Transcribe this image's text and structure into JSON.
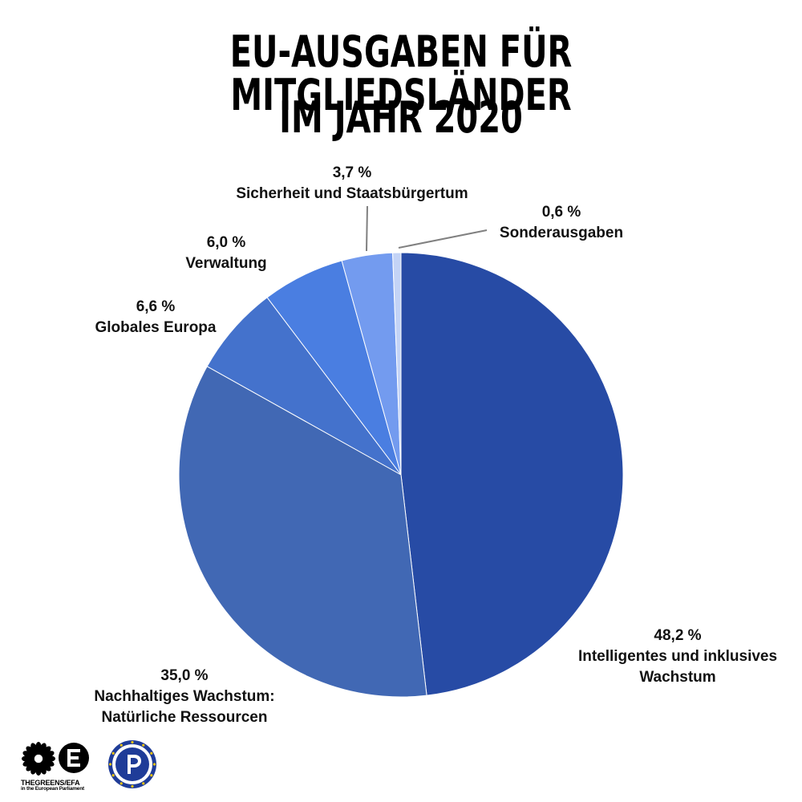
{
  "title_line1": "EU-AUSGABEN FÜR MITGLIEDSLÄNDER",
  "title_line2": "IM JAHR 2020",
  "chart_data": {
    "type": "pie",
    "title": "EU-AUSGABEN FÜR MITGLIEDSLÄNDER IM JAHR 2020",
    "start": "top",
    "direction": "clockwise",
    "slices": [
      {
        "value": 48.2,
        "pct_label": "48,2 %",
        "name_lines": [
          "Intelligentes und inklusives",
          "Wachstum"
        ],
        "color": "#274ba5"
      },
      {
        "value": 35.0,
        "pct_label": "35,0 %",
        "name_lines": [
          "Nachhaltiges Wachstum:",
          "Natürliche Ressourcen"
        ],
        "color": "#4168b4"
      },
      {
        "value": 6.6,
        "pct_label": "6,6 %",
        "name_lines": [
          "Globales Europa"
        ],
        "color": "#4472cc"
      },
      {
        "value": 6.0,
        "pct_label": "6,0 %",
        "name_lines": [
          "Verwaltung"
        ],
        "color": "#4a7ee1"
      },
      {
        "value": 3.7,
        "pct_label": "3,7 %",
        "name_lines": [
          "Sicherheit und Staatsbürgertum"
        ],
        "color": "#739bef"
      },
      {
        "value": 0.6,
        "pct_label": "0,6 %",
        "name_lines": [
          "Sonderausgaben"
        ],
        "color": "#c3d3f6"
      }
    ]
  },
  "logos": {
    "greens_line1": "THEGREENS/EFA",
    "greens_line2": "in the European Parliament",
    "greens_icon": "greens-sunflower-logo",
    "pirate_icon": "pirate-party-logo"
  }
}
